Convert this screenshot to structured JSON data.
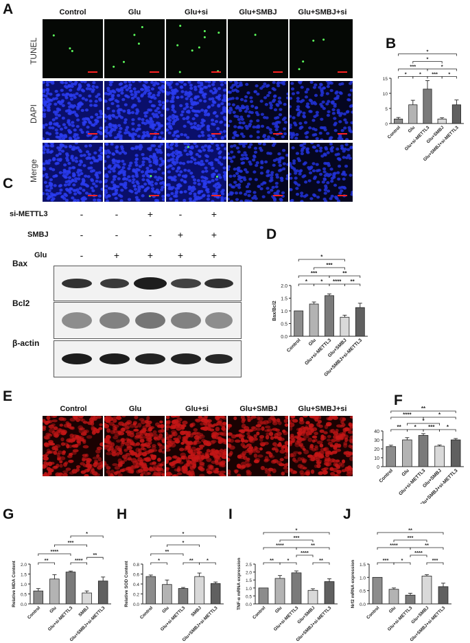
{
  "panels": {
    "A": "A",
    "B": "B",
    "C": "C",
    "D": "D",
    "E": "E",
    "F": "F",
    "G": "G",
    "H": "H",
    "I": "I",
    "J": "J"
  },
  "panelA": {
    "columns": [
      "Control",
      "Glu",
      "Glu+si",
      "Glu+SMBJ",
      "Glu+SMBJ+si"
    ],
    "rows": [
      "TUNEL",
      "DAPI",
      "Merge"
    ]
  },
  "panelC": {
    "conditions": [
      {
        "label": "si-METTL3",
        "signs": [
          "-",
          "-",
          "+",
          "-",
          "+"
        ]
      },
      {
        "label": "SMBJ",
        "signs": [
          "-",
          "-",
          "-",
          "+",
          "+"
        ]
      },
      {
        "label": "Glu",
        "signs": [
          "-",
          "+",
          "+",
          "+",
          "+"
        ]
      }
    ],
    "blots": [
      "Bax",
      "Bcl2",
      "β-actin"
    ]
  },
  "panelE": {
    "columns": [
      "Control",
      "Glu",
      "Glu+si",
      "Glu+SMBJ",
      "Glu+SMBJ+si"
    ]
  },
  "chart_data": [
    {
      "id": "B",
      "type": "bar",
      "categories": [
        "Control",
        "Glu",
        "Glu+si-METTL3",
        "Glu+SMBJ",
        "Glu+SMBJ+si-METTL3"
      ],
      "values": [
        1.5,
        6.2,
        11.4,
        1.5,
        6.2
      ],
      "errors": [
        0.5,
        1.5,
        2.8,
        0.4,
        1.6
      ],
      "colors": [
        "#8c8c8c",
        "#b3b3b3",
        "#7a7a7a",
        "#d9d9d9",
        "#606060"
      ],
      "ylabel": "",
      "ylim": [
        0,
        15
      ],
      "yticks": [
        0,
        5,
        10,
        15
      ],
      "significance": [
        {
          "from": 0,
          "to": 1,
          "label": "*",
          "level": 1
        },
        {
          "from": 1,
          "to": 2,
          "label": "*",
          "level": 1
        },
        {
          "from": 2,
          "to": 3,
          "label": "***",
          "level": 1
        },
        {
          "from": 3,
          "to": 4,
          "label": "*",
          "level": 1
        },
        {
          "from": 0,
          "to": 2,
          "label": "***",
          "level": 2
        },
        {
          "from": 2,
          "to": 4,
          "label": "*",
          "level": 2
        },
        {
          "from": 1,
          "to": 3,
          "label": "*",
          "level": 3
        },
        {
          "from": 0,
          "to": 4,
          "label": "*",
          "level": 4
        }
      ]
    },
    {
      "id": "D",
      "type": "bar",
      "categories": [
        "Control",
        "Glu",
        "Glu+si-METTL3",
        "Glu+SMBJ",
        "Glu+SMBJ+si-METTL3"
      ],
      "values": [
        1.0,
        1.27,
        1.6,
        0.75,
        1.13
      ],
      "errors": [
        0.0,
        0.08,
        0.07,
        0.08,
        0.17
      ],
      "colors": [
        "#8c8c8c",
        "#b3b3b3",
        "#7a7a7a",
        "#d9d9d9",
        "#606060"
      ],
      "ylabel": "Bax/Bcl2",
      "ylim": [
        0,
        2.0
      ],
      "yticks": [
        0.0,
        0.5,
        1.0,
        1.5,
        2.0
      ],
      "significance": [
        {
          "from": 0,
          "to": 1,
          "label": "*",
          "level": 1
        },
        {
          "from": 1,
          "to": 2,
          "label": "*",
          "level": 1
        },
        {
          "from": 2,
          "to": 3,
          "label": "****",
          "level": 1
        },
        {
          "from": 3,
          "to": 4,
          "label": "**",
          "level": 1
        },
        {
          "from": 0,
          "to": 2,
          "label": "***",
          "level": 2
        },
        {
          "from": 2,
          "to": 4,
          "label": "**",
          "level": 2
        },
        {
          "from": 1,
          "to": 3,
          "label": "***",
          "level": 3
        },
        {
          "from": 0,
          "to": 3,
          "label": "*",
          "level": 4
        }
      ]
    },
    {
      "id": "F",
      "type": "bar",
      "categories": [
        "Control",
        "Glu",
        "Glu+si-METTL3",
        "Glu+SMBJ",
        "Glu+SMBJ+si-METTL3"
      ],
      "values": [
        22.5,
        30,
        35,
        23,
        30
      ],
      "errors": [
        1.5,
        2.5,
        2.0,
        1.2,
        1.5
      ],
      "colors": [
        "#8c8c8c",
        "#b3b3b3",
        "#7a7a7a",
        "#d9d9d9",
        "#606060"
      ],
      "ylabel": "",
      "ylim": [
        0,
        40
      ],
      "yticks": [
        0,
        10,
        20,
        30,
        40
      ],
      "significance": [
        {
          "from": 0,
          "to": 1,
          "label": "**",
          "level": 1
        },
        {
          "from": 1,
          "to": 2,
          "label": "*",
          "level": 1
        },
        {
          "from": 2,
          "to": 3,
          "label": "***",
          "level": 1
        },
        {
          "from": 3,
          "to": 4,
          "label": "*",
          "level": 1
        },
        {
          "from": 1,
          "to": 3,
          "label": "*",
          "level": 2
        },
        {
          "from": 0,
          "to": 2,
          "label": "****",
          "level": 3
        },
        {
          "from": 2,
          "to": 4,
          "label": "*",
          "level": 3
        },
        {
          "from": 0,
          "to": 4,
          "label": "**",
          "level": 4
        }
      ]
    },
    {
      "id": "G",
      "type": "bar",
      "categories": [
        "Control",
        "Glu",
        "Glu+si-METTL3",
        "SMBJ",
        "Glu+SMBJ+si-METTL3"
      ],
      "values": [
        0.65,
        1.25,
        1.6,
        0.55,
        1.15
      ],
      "errors": [
        0.12,
        0.22,
        0.05,
        0.1,
        0.2
      ],
      "colors": [
        "#8c8c8c",
        "#b3b3b3",
        "#7a7a7a",
        "#d9d9d9",
        "#606060"
      ],
      "ylabel": "Relative MDA Content",
      "ylim": [
        0,
        2.0
      ],
      "yticks": [
        0.0,
        0.5,
        1.0,
        1.5,
        2.0
      ],
      "significance": [
        {
          "from": 0,
          "to": 1,
          "label": "**",
          "level": 1
        },
        {
          "from": 2,
          "to": 3,
          "label": "****",
          "level": 1
        },
        {
          "from": 3,
          "to": 4,
          "label": "**",
          "level": 1.6
        },
        {
          "from": 0,
          "to": 2,
          "label": "****",
          "level": 2
        },
        {
          "from": 1,
          "to": 3,
          "label": "***",
          "level": 3
        },
        {
          "from": 2,
          "to": 4,
          "label": "*",
          "level": 4
        }
      ]
    },
    {
      "id": "H",
      "type": "bar",
      "categories": [
        "Control",
        "Glu",
        "Glu+si-METTL3",
        "SMBJ",
        "Glu+SMBJ+si-METTL3"
      ],
      "values": [
        0.55,
        0.39,
        0.31,
        0.55,
        0.41
      ],
      "errors": [
        0.03,
        0.09,
        0.02,
        0.07,
        0.03
      ],
      "colors": [
        "#8c8c8c",
        "#b3b3b3",
        "#7a7a7a",
        "#d9d9d9",
        "#606060"
      ],
      "ylabel": "Relative SOD Content",
      "ylim": [
        0,
        0.8
      ],
      "yticks": [
        0.0,
        0.2,
        0.4,
        0.6,
        0.8
      ],
      "significance": [
        {
          "from": 0,
          "to": 1,
          "label": "*",
          "level": 1
        },
        {
          "from": 2,
          "to": 3,
          "label": "**",
          "level": 1
        },
        {
          "from": 3,
          "to": 4,
          "label": "*",
          "level": 1
        },
        {
          "from": 0,
          "to": 2,
          "label": "**",
          "level": 2
        },
        {
          "from": 1,
          "to": 3,
          "label": "*",
          "level": 3
        },
        {
          "from": 0,
          "to": 4,
          "label": "*",
          "level": 4
        }
      ]
    },
    {
      "id": "I",
      "type": "bar",
      "categories": [
        "Control",
        "Glu",
        "Glu+si-METTL3",
        "Glu+SMBJ",
        "Glu+SMBJ+si-METTL3"
      ],
      "values": [
        1.0,
        1.6,
        1.95,
        0.85,
        1.4
      ],
      "errors": [
        0.0,
        0.18,
        0.12,
        0.1,
        0.18
      ],
      "colors": [
        "#8c8c8c",
        "#b3b3b3",
        "#7a7a7a",
        "#d9d9d9",
        "#606060"
      ],
      "ylabel": "TNF-α mRNA expression",
      "ylim": [
        0,
        2.5
      ],
      "yticks": [
        0.0,
        0.5,
        1.0,
        1.5,
        2.0,
        2.5
      ],
      "significance": [
        {
          "from": 0,
          "to": 1,
          "label": "**",
          "level": 1
        },
        {
          "from": 1,
          "to": 2,
          "label": "*",
          "level": 1
        },
        {
          "from": 3,
          "to": 4,
          "label": "**",
          "level": 1
        },
        {
          "from": 2,
          "to": 3,
          "label": "****",
          "level": 2
        },
        {
          "from": 0,
          "to": 2,
          "label": "****",
          "level": 3
        },
        {
          "from": 2,
          "to": 4,
          "label": "**",
          "level": 3
        },
        {
          "from": 1,
          "to": 3,
          "label": "***",
          "level": 4
        },
        {
          "from": 0,
          "to": 4,
          "label": "*",
          "level": 5
        }
      ]
    },
    {
      "id": "J",
      "type": "bar",
      "categories": [
        "Control",
        "Glu",
        "Glu+si-METTL3",
        "Glu+SMBJ",
        "Glu+SMBJ+si-METTL3"
      ],
      "values": [
        1.0,
        0.55,
        0.33,
        1.05,
        0.65
      ],
      "errors": [
        0.0,
        0.05,
        0.07,
        0.05,
        0.13
      ],
      "colors": [
        "#8c8c8c",
        "#b3b3b3",
        "#7a7a7a",
        "#d9d9d9",
        "#606060"
      ],
      "ylabel": "Nrf2 mRNA expression",
      "ylim": [
        0,
        1.5
      ],
      "yticks": [
        0.0,
        0.5,
        1.0,
        1.5
      ],
      "significance": [
        {
          "from": 0,
          "to": 1,
          "label": "***",
          "level": 1
        },
        {
          "from": 1,
          "to": 2,
          "label": "*",
          "level": 1
        },
        {
          "from": 3,
          "to": 4,
          "label": "***",
          "level": 1
        },
        {
          "from": 2,
          "to": 3,
          "label": "****",
          "level": 2
        },
        {
          "from": 0,
          "to": 2,
          "label": "****",
          "level": 3
        },
        {
          "from": 2,
          "to": 4,
          "label": "**",
          "level": 3
        },
        {
          "from": 1,
          "to": 3,
          "label": "***",
          "level": 4
        },
        {
          "from": 0,
          "to": 4,
          "label": "**",
          "level": 5
        }
      ]
    }
  ]
}
